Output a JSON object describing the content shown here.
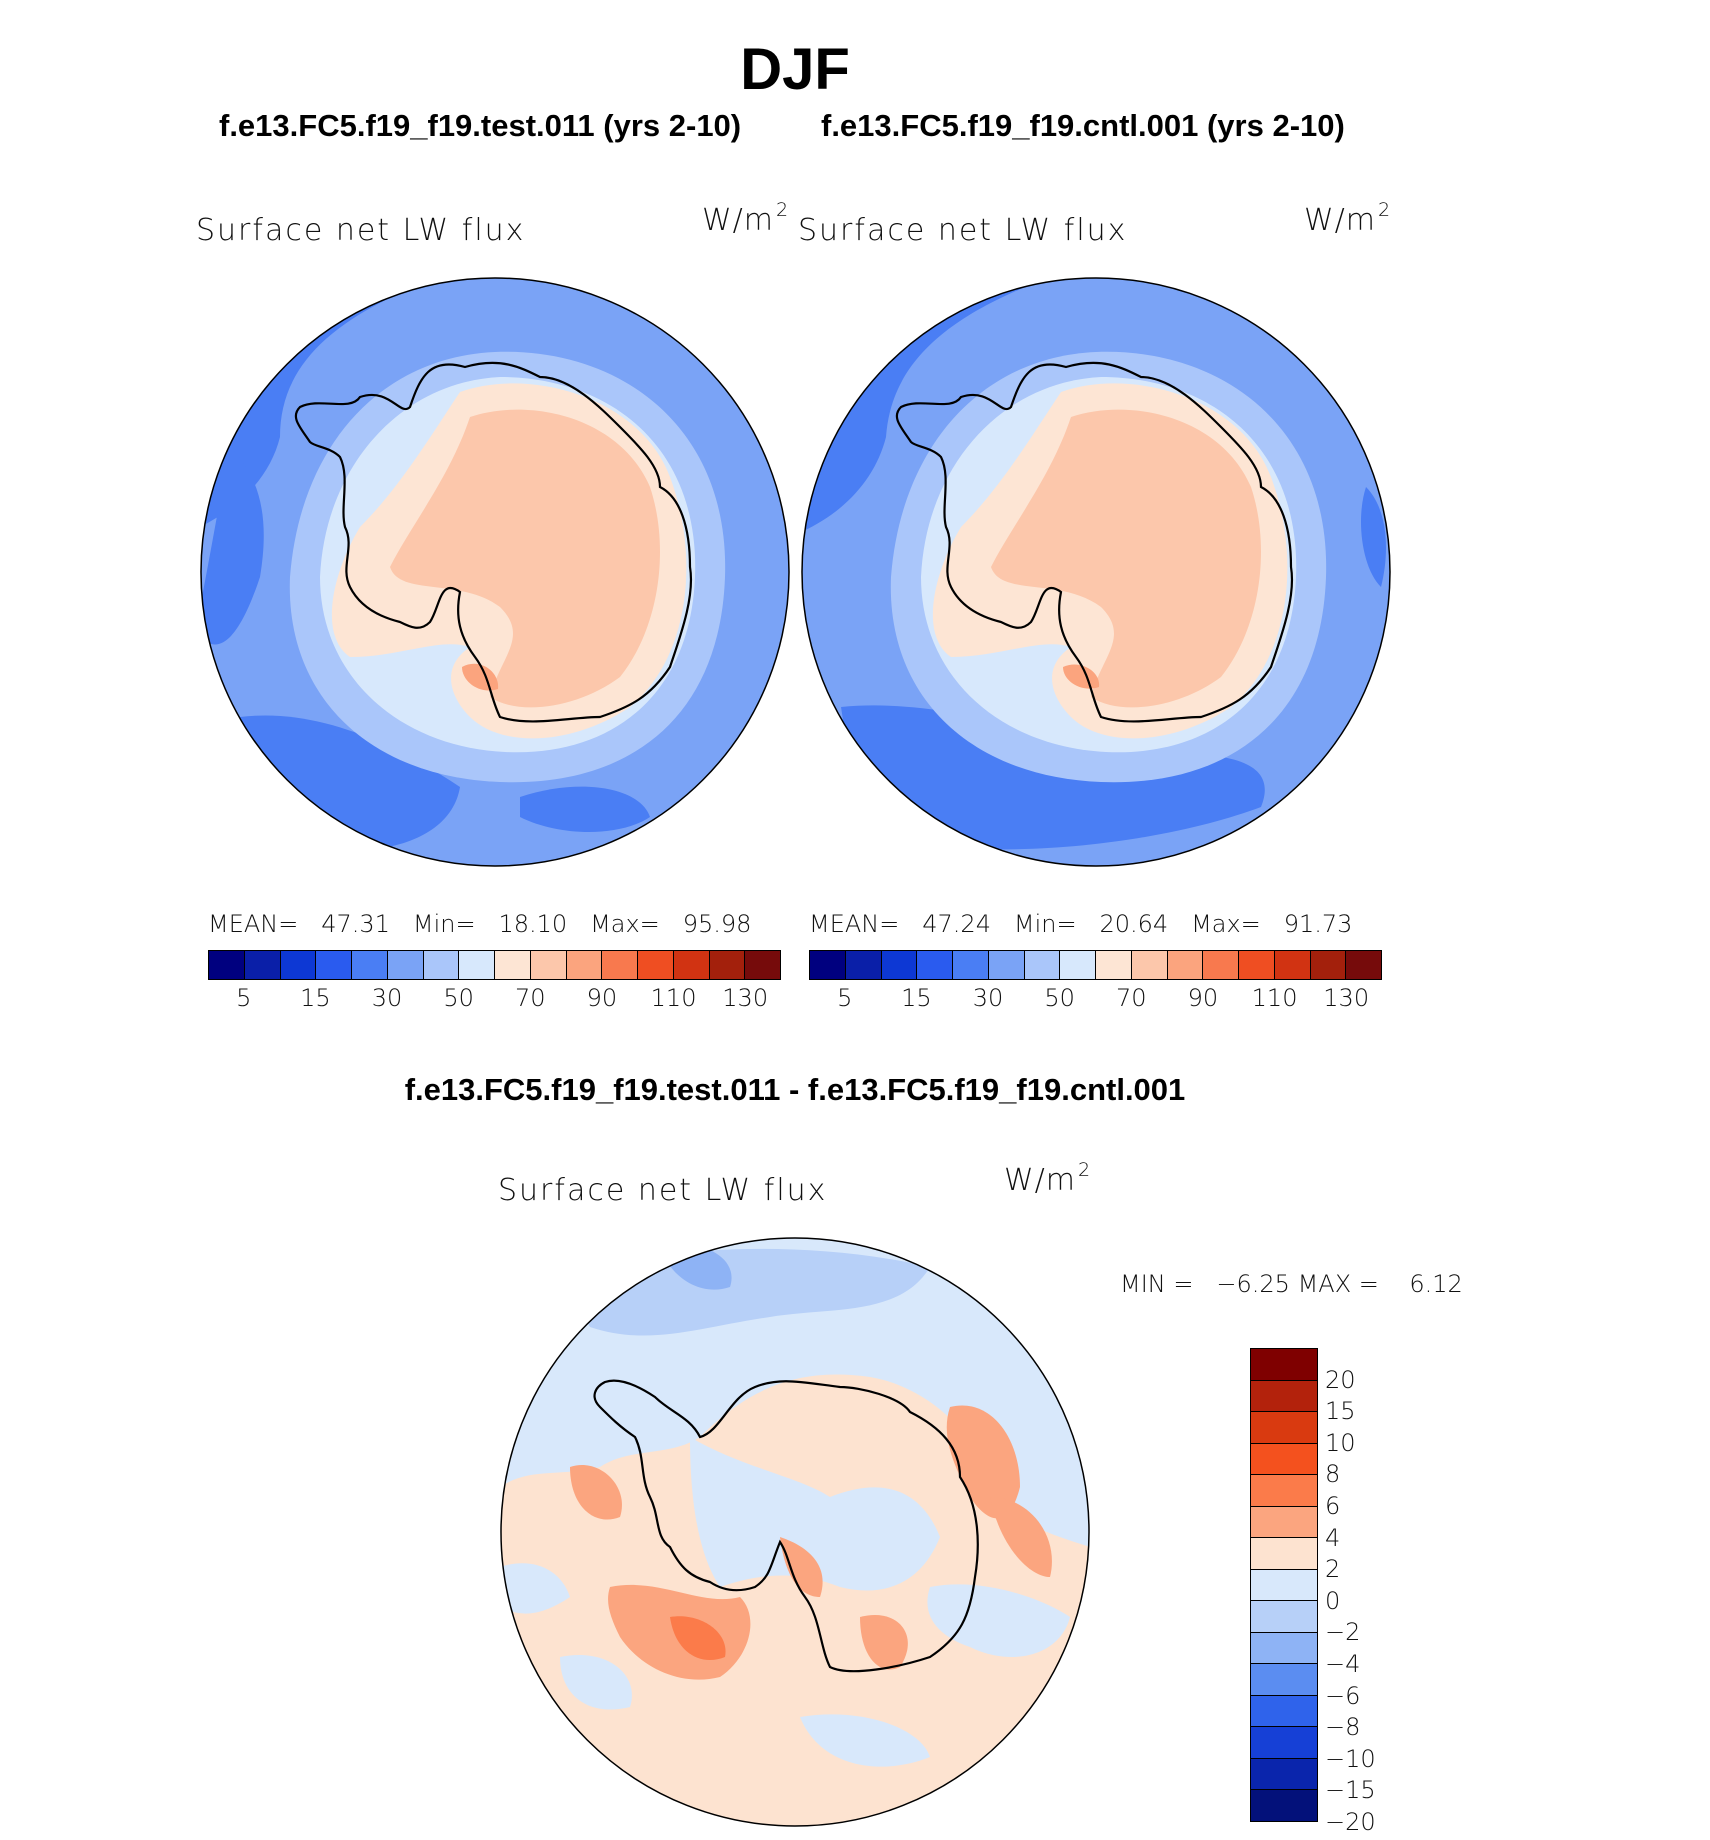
{
  "title": "DJF",
  "panels": [
    {
      "case": "f.e13.FC5.f19_f19.test.011 (yrs 2-10)",
      "variable": "Surface net LW flux",
      "units": "W/m",
      "units_sup": "2",
      "mean_label": "MEAN=",
      "mean": "47.31",
      "min_label": "Min=",
      "min": "18.10",
      "max_label": "Max=",
      "max": "95.98"
    },
    {
      "case": "f.e13.FC5.f19_f19.cntl.001 (yrs 2-10)",
      "variable": "Surface net LW flux",
      "units": "W/m",
      "units_sup": "2",
      "mean_label": "MEAN=",
      "mean": "47.24",
      "min_label": "Min=",
      "min": "20.64",
      "max_label": "Max=",
      "max": "91.73"
    }
  ],
  "difference": {
    "title": "f.e13.FC5.f19_f19.test.011 - f.e13.FC5.f19_f19.cntl.001",
    "variable": "Surface net LW flux",
    "units": "W/m",
    "units_sup": "2",
    "min_label": "MIN =",
    "min": "−6.25",
    "max_label": "MAX =",
    "max": "6.12"
  },
  "chart_data": [
    {
      "type": "heatmap",
      "name": "test.011 Surface net LW flux (south polar)",
      "colorbar_levels": [
        5,
        10,
        15,
        20,
        30,
        40,
        50,
        60,
        70,
        80,
        90,
        100,
        110,
        120,
        130
      ],
      "colorbar_tick_labels": [
        "5",
        "15",
        "30",
        "50",
        "70",
        "90",
        "110",
        "130"
      ],
      "colors": [
        "#00007f",
        "#0a1fa8",
        "#0d38d4",
        "#2a5bef",
        "#4a7ef4",
        "#7aa3f6",
        "#aac6fa",
        "#d7e8fc",
        "#fde5d4",
        "#fcc7ab",
        "#fba47e",
        "#f8794e",
        "#ef4e22",
        "#d13312",
        "#a3200c",
        "#760b0b"
      ],
      "stats": {
        "mean": 47.31,
        "min": 18.1,
        "max": 95.98
      }
    },
    {
      "type": "heatmap",
      "name": "cntl.001 Surface net LW flux (south polar)",
      "colorbar_levels": [
        5,
        10,
        15,
        20,
        30,
        40,
        50,
        60,
        70,
        80,
        90,
        100,
        110,
        120,
        130
      ],
      "colorbar_tick_labels": [
        "5",
        "15",
        "30",
        "50",
        "70",
        "90",
        "110",
        "130"
      ],
      "colors": [
        "#00007f",
        "#0a1fa8",
        "#0d38d4",
        "#2a5bef",
        "#4a7ef4",
        "#7aa3f6",
        "#aac6fa",
        "#d7e8fc",
        "#fde5d4",
        "#fcc7ab",
        "#fba47e",
        "#f8794e",
        "#ef4e22",
        "#d13312",
        "#a3200c",
        "#760b0b"
      ],
      "stats": {
        "mean": 47.24,
        "min": 20.64,
        "max": 91.73
      }
    },
    {
      "type": "heatmap",
      "name": "test.011 - cntl.001 difference (south polar)",
      "colorbar_levels": [
        "20",
        "15",
        "10",
        "8",
        "6",
        "4",
        "2",
        "0",
        "−2",
        "−4",
        "−6",
        "−8",
        "−10",
        "−15",
        "−20"
      ],
      "colors_top_to_bottom": [
        "#7f0000",
        "#b3220c",
        "#d93a10",
        "#f4511e",
        "#fb7b4a",
        "#fba57f",
        "#fde3d0",
        "#d8e8fb",
        "#b7d0f8",
        "#8eb3f5",
        "#5b8df1",
        "#2f63eb",
        "#1640d6",
        "#0a25ac",
        "#03117a"
      ],
      "stats": {
        "min": -6.25,
        "max": 6.12
      }
    }
  ]
}
